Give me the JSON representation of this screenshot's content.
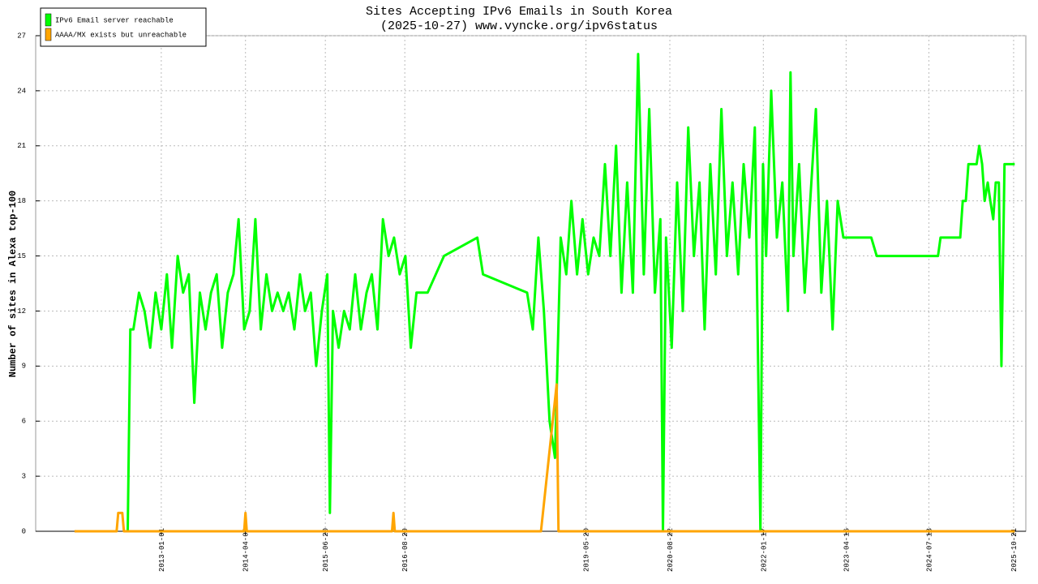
{
  "chart_data": {
    "type": "line",
    "title": "Sites Accepting IPv6 Emails in South Korea",
    "subtitle": "(2025-10-27) www.vyncke.org/ipv6status",
    "y_label": "Number of sites in Alexa top-100",
    "xlim": [
      "2011-02-12",
      "2025-12-27"
    ],
    "xticks": [
      "2013-01-01",
      "2014-04-08",
      "2015-06-20",
      "2016-08-29",
      "2019-05-20",
      "2020-08-22",
      "2022-01-17",
      "2023-04-16",
      "2024-07-13",
      "2025-10-21"
    ],
    "ylim": [
      0,
      27
    ],
    "yticks": [
      0,
      3,
      6,
      9,
      12,
      15,
      18,
      21,
      24,
      27
    ],
    "grid": true,
    "legend": "top-left",
    "series": [
      {
        "name": "IPv6 Email server reachable",
        "color": "#00ff00",
        "x": [
          "2012-07-01",
          "2012-07-15",
          "2012-08-01",
          "2012-09-01",
          "2012-10-01",
          "2012-11-01",
          "2012-12-01",
          "2013-01-01",
          "2013-02-01",
          "2013-03-01",
          "2013-04-01",
          "2013-05-01",
          "2013-06-01",
          "2013-07-01",
          "2013-08-01",
          "2013-09-01",
          "2013-10-01",
          "2013-11-01",
          "2013-12-01",
          "2014-01-01",
          "2014-02-01",
          "2014-03-01",
          "2014-04-01",
          "2014-05-01",
          "2014-06-01",
          "2014-07-01",
          "2014-08-01",
          "2014-09-01",
          "2014-10-01",
          "2014-11-01",
          "2014-12-01",
          "2015-01-01",
          "2015-02-01",
          "2015-03-01",
          "2015-04-01",
          "2015-05-01",
          "2015-06-01",
          "2015-07-01",
          "2015-07-15",
          "2015-08-01",
          "2015-09-01",
          "2015-10-01",
          "2015-11-01",
          "2015-12-01",
          "2016-01-01",
          "2016-02-01",
          "2016-03-01",
          "2016-04-01",
          "2016-05-01",
          "2016-06-01",
          "2016-07-01",
          "2016-08-01",
          "2016-09-01",
          "2016-10-01",
          "2016-11-01",
          "2017-01-01",
          "2017-04-01",
          "2017-10-01",
          "2017-11-01",
          "2018-07-01",
          "2018-08-01",
          "2018-09-01",
          "2018-10-01",
          "2018-11-01",
          "2018-12-01",
          "2019-01-01",
          "2019-02-01",
          "2019-03-01",
          "2019-04-01",
          "2019-05-01",
          "2019-06-01",
          "2019-07-01",
          "2019-08-01",
          "2019-09-01",
          "2019-10-01",
          "2019-11-01",
          "2019-12-01",
          "2020-01-01",
          "2020-02-01",
          "2020-03-01",
          "2020-04-01",
          "2020-05-01",
          "2020-06-01",
          "2020-07-01",
          "2020-07-15",
          "2020-08-01",
          "2020-09-01",
          "2020-10-01",
          "2020-11-01",
          "2020-12-01",
          "2021-01-01",
          "2021-02-01",
          "2021-03-01",
          "2021-04-01",
          "2021-05-01",
          "2021-06-01",
          "2021-07-01",
          "2021-08-01",
          "2021-09-01",
          "2021-10-01",
          "2021-11-01",
          "2021-12-01",
          "2022-01-01",
          "2022-01-15",
          "2022-02-01",
          "2022-03-01",
          "2022-04-01",
          "2022-05-01",
          "2022-06-01",
          "2022-06-15",
          "2022-07-01",
          "2022-08-01",
          "2022-09-01",
          "2022-10-01",
          "2022-11-01",
          "2022-12-01",
          "2023-01-01",
          "2023-02-01",
          "2023-03-01",
          "2023-04-01",
          "2023-09-01",
          "2023-10-01",
          "2023-12-01",
          "2024-09-01",
          "2024-09-15",
          "2025-01-01",
          "2025-01-15",
          "2025-02-01",
          "2025-02-15",
          "2025-04-01",
          "2025-04-15",
          "2025-05-01",
          "2025-05-15",
          "2025-06-01",
          "2025-06-15",
          "2025-07-01",
          "2025-07-15",
          "2025-08-01",
          "2025-08-15",
          "2025-09-01",
          "2025-10-27"
        ],
        "values": [
          0,
          11,
          11,
          13,
          12,
          10,
          13,
          11,
          14,
          10,
          15,
          13,
          14,
          7,
          13,
          11,
          13,
          14,
          10,
          13,
          14,
          17,
          11,
          12,
          17,
          11,
          14,
          12,
          13,
          12,
          13,
          11,
          14,
          12,
          13,
          9,
          12,
          14,
          1,
          12,
          10,
          12,
          11,
          14,
          11,
          13,
          14,
          11,
          17,
          15,
          16,
          14,
          15,
          10,
          13,
          13,
          15,
          16,
          14,
          13,
          11,
          16,
          12,
          6,
          4,
          16,
          14,
          18,
          14,
          17,
          14,
          16,
          15,
          20,
          15,
          21,
          13,
          19,
          13,
          26,
          14,
          23,
          13,
          17,
          0,
          16,
          10,
          19,
          12,
          22,
          15,
          19,
          11,
          20,
          14,
          23,
          15,
          19,
          14,
          20,
          16,
          22,
          0,
          20,
          15,
          24,
          16,
          19,
          12,
          25,
          15,
          20,
          13,
          18,
          23,
          13,
          18,
          11,
          18,
          16,
          16,
          15,
          15,
          15,
          16,
          16,
          18,
          18,
          20,
          20,
          21,
          20,
          18,
          19,
          18,
          17,
          19,
          19,
          9,
          20,
          20
        ]
      },
      {
        "name": "AAAA/MX exists but unreachable",
        "color": "#ffa500",
        "x": [
          "2011-09-13",
          "2012-05-01",
          "2012-05-10",
          "2012-06-01",
          "2012-06-10",
          "2014-04-01",
          "2014-04-08",
          "2014-04-15",
          "2016-06-20",
          "2016-06-28",
          "2016-07-05",
          "2018-09-15",
          "2018-12-10",
          "2018-12-20",
          "2025-10-27"
        ],
        "values": [
          0,
          0,
          1,
          1,
          0,
          0,
          1,
          0,
          0,
          1,
          0,
          0,
          8,
          0,
          0
        ]
      }
    ]
  }
}
